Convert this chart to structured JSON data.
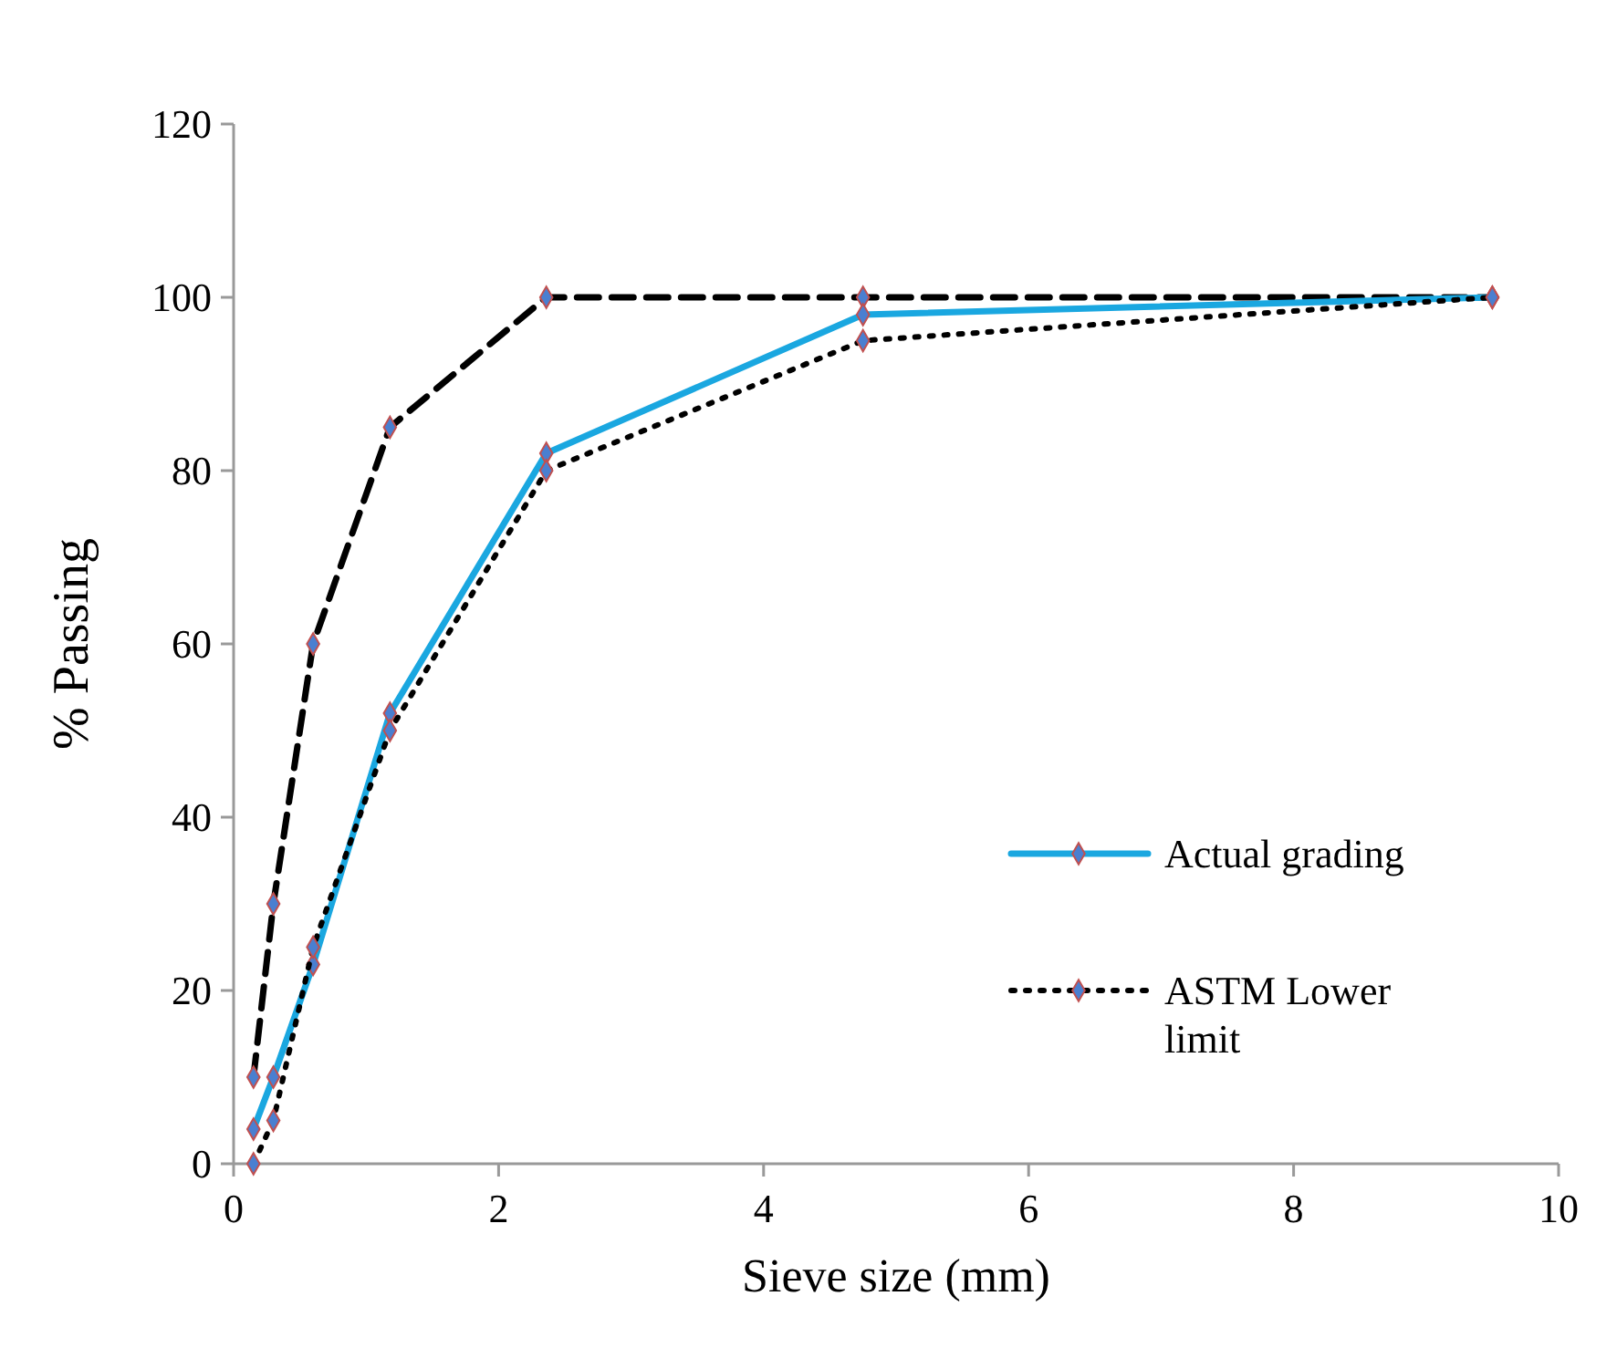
{
  "chart_data": {
    "type": "line",
    "xlabel": "Sieve size (mm)",
    "ylabel": "% Passing",
    "x": [
      0.15,
      0.3,
      0.6,
      1.18,
      2.36,
      4.75,
      9.5
    ],
    "series": [
      {
        "values": [
          10,
          30,
          60,
          85,
          100,
          100,
          100
        ],
        "color": "#000000",
        "line_style": "dashed"
      },
      {
        "name": "Actual grading",
        "values": [
          4,
          10,
          23,
          52,
          82,
          98,
          100
        ],
        "color": "#1aa7e0",
        "line_style": "solid"
      },
      {
        "name": "ASTM Lower limit",
        "values": [
          0,
          5,
          25,
          50,
          80,
          95,
          100
        ],
        "color": "#000000",
        "line_style": "dotted"
      }
    ],
    "xlim": [
      0,
      10
    ],
    "xticks": [
      0,
      2,
      4,
      6,
      8,
      10
    ],
    "ylim": [
      0,
      120
    ],
    "yticks": [
      0,
      20,
      40,
      60,
      80,
      100,
      120
    ],
    "grid": false,
    "legend": "bottom right",
    "marker": "diamond"
  }
}
